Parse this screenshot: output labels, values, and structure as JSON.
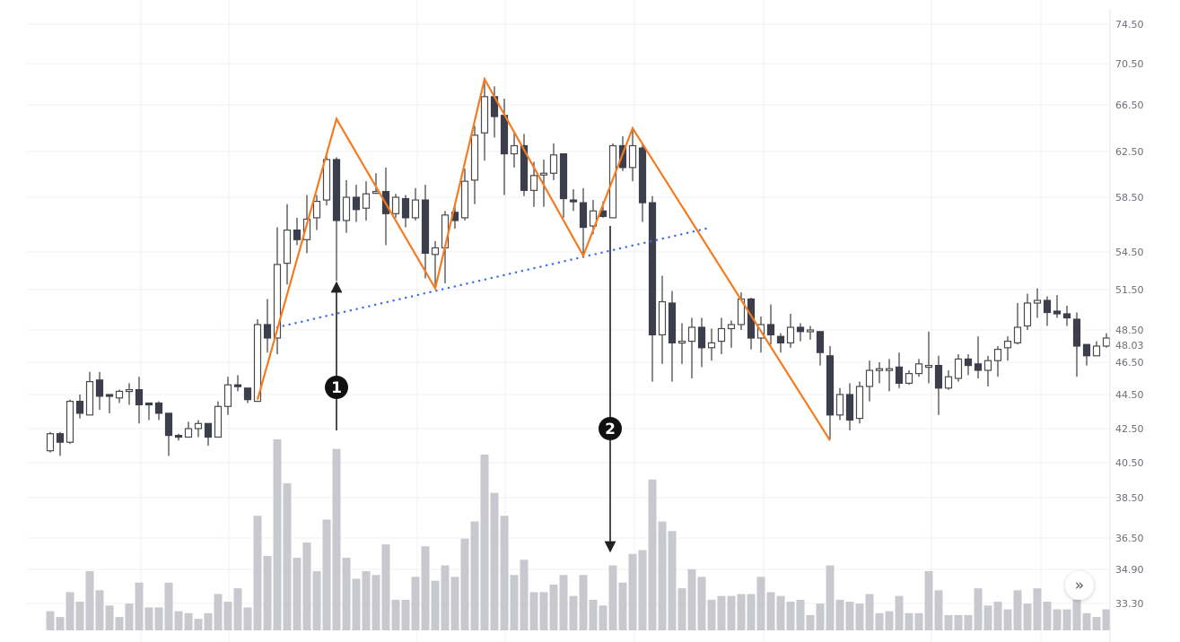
{
  "chart_data": {
    "type": "candlestick",
    "title": "",
    "xlabel": "",
    "ylabel": "",
    "y_ticks": [
      "74.50",
      "70.50",
      "66.50",
      "62.50",
      "58.50",
      "54.50",
      "51.50",
      "48.50",
      "46.50",
      "44.50",
      "42.50",
      "40.50",
      "38.50",
      "36.50",
      "34.90",
      "33.30"
    ],
    "last_price_label": "48.03",
    "grid": true,
    "candle_fields": [
      "open",
      "high",
      "low",
      "close"
    ],
    "candles": [
      [
        41.2,
        42.3,
        41.1,
        42.2
      ],
      [
        42.2,
        42.3,
        40.9,
        41.7
      ],
      [
        41.7,
        44.2,
        41.6,
        44.1
      ],
      [
        44.1,
        44.5,
        43.1,
        43.4
      ],
      [
        43.3,
        45.9,
        43.3,
        45.3
      ],
      [
        45.4,
        45.9,
        43.6,
        44.4
      ],
      [
        44.5,
        44.5,
        43.4,
        44.4
      ],
      [
        44.3,
        44.8,
        44.0,
        44.7
      ],
      [
        44.8,
        45.2,
        43.9,
        44.8
      ],
      [
        44.8,
        45.6,
        42.8,
        43.9
      ],
      [
        44.0,
        44.0,
        43.0,
        43.9
      ],
      [
        44.0,
        44.1,
        43.0,
        43.4
      ],
      [
        43.4,
        43.4,
        40.9,
        42.1
      ],
      [
        42.1,
        42.2,
        41.8,
        42.0
      ],
      [
        42.0,
        42.9,
        42.0,
        42.5
      ],
      [
        42.5,
        43.0,
        42.0,
        42.8
      ],
      [
        42.8,
        42.8,
        41.5,
        42.0
      ],
      [
        42.0,
        44.1,
        42.0,
        43.8
      ],
      [
        43.8,
        45.6,
        43.3,
        45.1
      ],
      [
        45.1,
        45.7,
        44.7,
        45.0
      ],
      [
        44.9,
        44.9,
        44.0,
        44.2
      ],
      [
        44.1,
        49.3,
        44.1,
        48.9
      ],
      [
        48.9,
        50.8,
        47.1,
        48.0
      ],
      [
        48.0,
        56.3,
        47.0,
        53.5
      ],
      [
        53.6,
        58.0,
        51.9,
        56.1
      ],
      [
        56.1,
        57.0,
        55.0,
        55.4
      ],
      [
        55.4,
        58.7,
        54.4,
        56.9
      ],
      [
        57.0,
        58.7,
        56.1,
        58.2
      ],
      [
        58.3,
        62.4,
        57.9,
        61.8
      ],
      [
        61.8,
        62.0,
        52.2,
        56.8
      ],
      [
        56.8,
        60.0,
        55.9,
        58.5
      ],
      [
        58.5,
        59.6,
        56.7,
        57.6
      ],
      [
        57.7,
        59.9,
        56.8,
        58.8
      ],
      [
        58.9,
        60.6,
        58.8,
        59.0
      ],
      [
        59.0,
        61.1,
        55.0,
        57.3
      ],
      [
        57.3,
        58.8,
        57.0,
        58.5
      ],
      [
        58.4,
        58.7,
        56.3,
        57.0
      ],
      [
        57.0,
        59.3,
        56.8,
        58.3
      ],
      [
        58.3,
        59.6,
        52.4,
        54.4
      ],
      [
        54.3,
        55.3,
        51.7,
        54.8
      ],
      [
        54.8,
        57.5,
        52.0,
        57.2
      ],
      [
        57.4,
        57.9,
        56.2,
        56.8
      ],
      [
        57.0,
        61.0,
        56.8,
        59.9
      ],
      [
        60.0,
        64.7,
        58.0,
        63.9
      ],
      [
        64.1,
        69.0,
        61.7,
        67.3
      ],
      [
        67.3,
        68.3,
        63.7,
        65.5
      ],
      [
        65.6,
        67.1,
        58.7,
        62.3
      ],
      [
        62.3,
        64.2,
        61.1,
        63.0
      ],
      [
        63.0,
        64.0,
        58.6,
        59.1
      ],
      [
        59.1,
        61.6,
        57.8,
        60.4
      ],
      [
        60.5,
        61.8,
        57.8,
        60.6
      ],
      [
        60.6,
        63.2,
        60.0,
        62.2
      ],
      [
        62.3,
        62.3,
        57.0,
        58.4
      ],
      [
        58.3,
        59.2,
        57.5,
        58.2
      ],
      [
        58.1,
        59.3,
        54.4,
        56.3
      ],
      [
        56.4,
        58.3,
        55.8,
        57.5
      ],
      [
        57.5,
        58.2,
        57.0,
        57.1
      ],
      [
        57.0,
        63.2,
        57.0,
        63.0
      ],
      [
        63.0,
        63.8,
        60.8,
        61.1
      ],
      [
        61.1,
        64.6,
        59.9,
        63.0
      ],
      [
        62.8,
        63.2,
        56.7,
        58.1
      ],
      [
        58.1,
        58.6,
        45.3,
        48.2
      ],
      [
        48.2,
        52.6,
        46.4,
        50.6
      ],
      [
        50.5,
        51.4,
        45.3,
        47.7
      ],
      [
        47.7,
        49.0,
        46.4,
        47.8
      ],
      [
        47.8,
        49.4,
        45.5,
        48.7
      ],
      [
        48.7,
        49.4,
        46.2,
        47.4
      ],
      [
        47.4,
        48.6,
        46.6,
        47.7
      ],
      [
        47.8,
        49.4,
        47.0,
        48.6
      ],
      [
        48.6,
        49.2,
        47.4,
        48.9
      ],
      [
        48.9,
        51.3,
        48.5,
        50.8
      ],
      [
        50.8,
        50.9,
        47.3,
        48.0
      ],
      [
        48.0,
        49.5,
        47.1,
        48.9
      ],
      [
        48.9,
        50.4,
        47.6,
        48.2
      ],
      [
        48.1,
        48.3,
        47.1,
        47.7
      ],
      [
        47.7,
        49.7,
        47.4,
        48.7
      ],
      [
        48.7,
        49.0,
        47.8,
        48.4
      ],
      [
        48.5,
        48.8,
        47.9,
        48.5
      ],
      [
        48.4,
        48.4,
        46.3,
        47.1
      ],
      [
        46.9,
        47.5,
        41.9,
        43.3
      ],
      [
        43.3,
        44.9,
        43.0,
        44.5
      ],
      [
        44.5,
        45.2,
        42.4,
        43.0
      ],
      [
        43.1,
        45.3,
        42.8,
        45.0
      ],
      [
        45.0,
        46.6,
        44.1,
        46.0
      ],
      [
        46.0,
        46.5,
        45.2,
        46.1
      ],
      [
        46.1,
        46.7,
        44.7,
        46.1
      ],
      [
        46.2,
        47.1,
        44.9,
        45.2
      ],
      [
        45.2,
        46.0,
        45.1,
        45.8
      ],
      [
        45.8,
        46.7,
        45.6,
        46.4
      ],
      [
        46.3,
        48.4,
        45.2,
        46.3
      ],
      [
        46.3,
        46.9,
        43.3,
        44.9
      ],
      [
        44.9,
        46.0,
        44.8,
        45.6
      ],
      [
        45.5,
        47.0,
        45.3,
        46.7
      ],
      [
        46.7,
        47.0,
        45.7,
        46.3
      ],
      [
        46.4,
        48.1,
        45.5,
        46.0
      ],
      [
        46.0,
        46.9,
        45.0,
        46.6
      ],
      [
        46.6,
        47.5,
        45.6,
        47.3
      ],
      [
        47.4,
        48.1,
        46.6,
        47.8
      ],
      [
        47.7,
        50.5,
        47.6,
        48.7
      ],
      [
        48.8,
        51.2,
        48.5,
        50.5
      ],
      [
        50.5,
        51.6,
        49.4,
        50.7
      ],
      [
        50.7,
        51.0,
        48.8,
        49.8
      ],
      [
        49.9,
        51.1,
        49.4,
        49.7
      ],
      [
        49.7,
        50.3,
        48.8,
        49.4
      ],
      [
        49.3,
        49.8,
        45.6,
        47.5
      ],
      [
        47.6,
        47.6,
        46.3,
        46.9
      ],
      [
        46.9,
        47.8,
        46.9,
        47.5
      ],
      [
        47.5,
        48.3,
        47.4,
        48.0
      ]
    ],
    "volume_relative": [
      10,
      7,
      20,
      15,
      31,
      21,
      13,
      7,
      14,
      25,
      12,
      12,
      25,
      10,
      9,
      6,
      9,
      19,
      15,
      22,
      12,
      60,
      39,
      100,
      77,
      38,
      46,
      31,
      58,
      95,
      38,
      27,
      31,
      29,
      45,
      16,
      16,
      28,
      44,
      26,
      34,
      28,
      48,
      57,
      92,
      72,
      60,
      29,
      37,
      20,
      20,
      24,
      29,
      18,
      29,
      16,
      13,
      34,
      25,
      40,
      42,
      79,
      57,
      52,
      22,
      32,
      28,
      16,
      18,
      18,
      19,
      19,
      28,
      20,
      18,
      15,
      16,
      8,
      14,
      34,
      16,
      15,
      14,
      19,
      9,
      10,
      18,
      9,
      9,
      31,
      21,
      8,
      8,
      8,
      22,
      13,
      15,
      11,
      21,
      14,
      22,
      15,
      11,
      11,
      16,
      9,
      7,
      11
    ],
    "annotations": {
      "zigzag": {
        "color": "#f47b20",
        "points": [
          {
            "candle": 21,
            "price": 44.2
          },
          {
            "candle": 29,
            "price": 65.3
          },
          {
            "candle": 39,
            "price": 51.6
          },
          {
            "candle": 44,
            "price": 69.0
          },
          {
            "candle": 54,
            "price": 54.2
          },
          {
            "candle": 59,
            "price": 64.5
          },
          {
            "candle": 79,
            "price": 41.8
          }
        ]
      },
      "neckline": {
        "color": "#3d6ef0",
        "style": "dotted",
        "from": {
          "candle": 23,
          "price": 48.7
        },
        "to": {
          "candle": 67,
          "price": 56.3
        }
      },
      "markers": [
        {
          "label": "1",
          "candle": 29,
          "direction": "up"
        },
        {
          "label": "2",
          "candle": 57,
          "direction": "down"
        }
      ]
    },
    "colors": {
      "down_candle": "#3c3f4b",
      "up_candle": "#ffffff",
      "candle_outline": "#4a4a4a",
      "volume": "#c8c9ce",
      "grid": "#f1f1f3"
    }
  },
  "controls": {
    "scroll_button_icon": "double-chevron-right-icon",
    "scroll_button_label": "»"
  }
}
